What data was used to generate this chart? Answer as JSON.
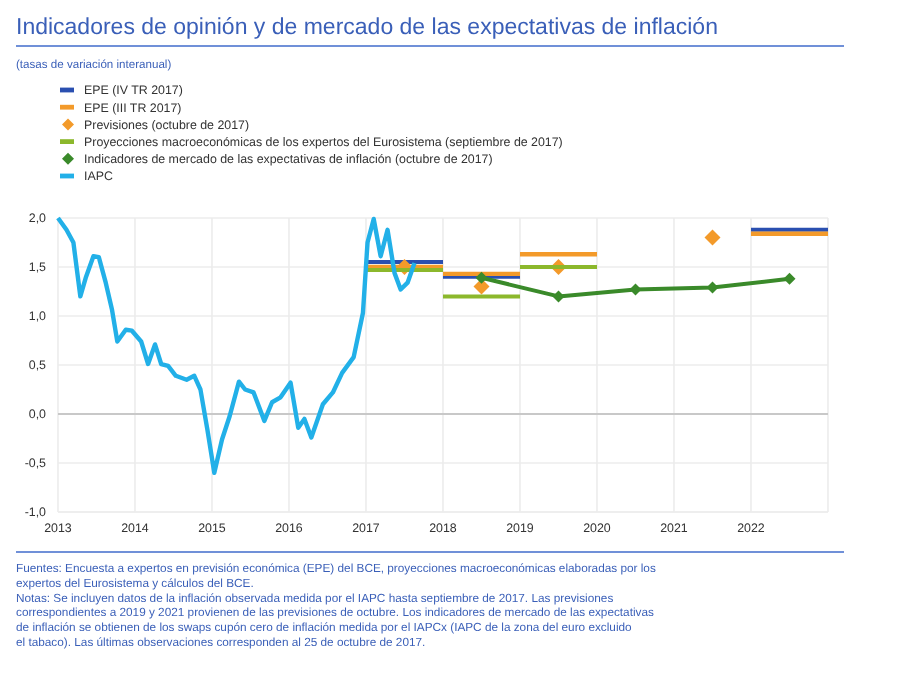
{
  "chart_data": {
    "type": "line",
    "title": "Indicadores de opinión y de mercado de las expectativas de inflación",
    "subtitle": "(tasas de variación interanual)",
    "xlim": [
      2013,
      2023
    ],
    "xticks": [
      2013,
      2014,
      2015,
      2016,
      2017,
      2018,
      2019,
      2020,
      2021,
      2022
    ],
    "ylim": [
      -1,
      2
    ],
    "yticks": [
      {
        "value": -1,
        "label": "-1,0"
      },
      {
        "value": -0.5,
        "label": "-0,5"
      },
      {
        "value": 0,
        "label": "0,0"
      },
      {
        "value": 0.5,
        "label": "0,5"
      },
      {
        "value": 1,
        "label": "1,0"
      },
      {
        "value": 1.5,
        "label": "1,5"
      },
      {
        "value": 2,
        "label": "2,0"
      }
    ],
    "grid": true,
    "legend": "top left",
    "ref_lines": [
      {
        "axis": "y",
        "value": 0,
        "color": "#c8c8c8"
      }
    ],
    "series": [
      {
        "name": "EPE (IV TR 2017)",
        "color": "#2a4fb0",
        "marker": "none",
        "x": [
          2017,
          2018,
          null,
          2018,
          2019,
          null,
          2022,
          2023
        ],
        "values": [
          1.55,
          1.55,
          null,
          1.4,
          1.4,
          null,
          1.88,
          1.88
        ]
      },
      {
        "name": "EPE (III TR 2017)",
        "color": "#f39a2a",
        "marker": "none",
        "x": [
          2017,
          2018,
          null,
          2018,
          2019,
          null,
          2019,
          2020,
          null,
          2022,
          2023
        ],
        "values": [
          1.5,
          1.5,
          null,
          1.43,
          1.43,
          null,
          1.63,
          1.63,
          null,
          1.84,
          1.84
        ]
      },
      {
        "name": "Previsiones (octubre de 2017)",
        "color": "#f39a2a",
        "type": "scatter",
        "marker": "diamond",
        "x": [
          2017.5,
          2018.5,
          2019.5,
          2021.5
        ],
        "values": [
          1.5,
          1.3,
          1.5,
          1.8
        ]
      },
      {
        "name": "Proyecciones macroeconómicas de los expertos del Eurosistema (septiembre de 2017)",
        "color": "#8cb82c",
        "marker": "none",
        "x": [
          2017,
          2018,
          null,
          2018,
          2019,
          null,
          2019,
          2020
        ],
        "values": [
          1.47,
          1.47,
          null,
          1.2,
          1.2,
          null,
          1.5,
          1.5
        ]
      },
      {
        "name": "Indicadores de mercado de las expectativas de inflación (octubre de 2017)",
        "color": "#3a8a2a",
        "marker": "diamond",
        "x": [
          2018.5,
          2019.5,
          2020.5,
          2021.5,
          2022.5
        ],
        "values": [
          1.39,
          1.2,
          1.27,
          1.29,
          1.38
        ]
      },
      {
        "name": "IAPC",
        "color": "#22b0e8",
        "marker": "none",
        "x": [
          2013,
          2013.11,
          2013.2,
          2013.29,
          2013.36,
          2013.46,
          2013.53,
          2013.62,
          2013.7,
          2013.77,
          2013.88,
          2013.96,
          2014.08,
          2014.17,
          2014.26,
          2014.34,
          2014.43,
          2014.53,
          2014.67,
          2014.77,
          2014.85,
          2014.94,
          2015.03,
          2015.13,
          2015.23,
          2015.35,
          2015.43,
          2015.54,
          2015.68,
          2015.78,
          2015.89,
          2016.02,
          2016.12,
          2016.2,
          2016.29,
          2016.44,
          2016.57,
          2016.69,
          2016.84,
          2016.96,
          2017.02,
          2017.1,
          2017.19,
          2017.28,
          2017.37,
          2017.45,
          2017.54,
          2017.63
        ],
        "values": [
          2,
          1.88,
          1.75,
          1.2,
          1.39,
          1.61,
          1.6,
          1.34,
          1.07,
          0.74,
          0.86,
          0.85,
          0.74,
          0.51,
          0.71,
          0.51,
          0.49,
          0.39,
          0.35,
          0.39,
          0.25,
          -0.16,
          -0.6,
          -0.26,
          -0.02,
          0.33,
          0.25,
          0.22,
          -0.07,
          0.12,
          0.17,
          0.32,
          -0.14,
          -0.05,
          -0.24,
          0.1,
          0.22,
          0.42,
          0.58,
          1.03,
          1.75,
          1.99,
          1.61,
          1.88,
          1.44,
          1.27,
          1.34,
          1.54
        ]
      }
    ],
    "annotations": [
      "Fuentes: Encuesta a expertos en previsión económica (EPE) del BCE, proyecciones macroeconómicas elaboradas por los expertos del Eurosistema y cálculos del BCE.",
      "Notas: Se incluyen datos de la inflación observada medida por el IAPC hasta septiembre de 2017. Las previsiones correspondientes a 2019 y 2021 provienen de las previsiones de octubre. Los indicadores de mercado de las expectativas de inflación se obtienen de los swaps cupón cero de inflación medida por el IAPCx (IAPC de la zona del euro excluido el tabaco). Las últimas observaciones corresponden al 25 de octubre de 2017."
    ]
  }
}
